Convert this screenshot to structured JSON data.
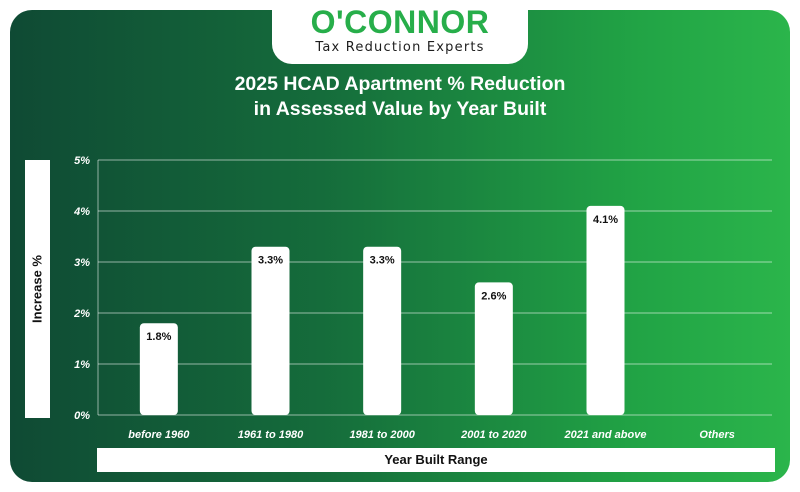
{
  "brand": {
    "name": "O'CONNOR",
    "tagline": "Tax Reduction Experts",
    "color": "#27ae4a"
  },
  "chart_data": {
    "type": "bar",
    "title_lines": [
      "2025 HCAD Apartment % Reduction",
      "in Assessed Value by Year Built"
    ],
    "categories": [
      "before 1960",
      "1961 to 1980",
      "1981 to 2000",
      "2001 to 2020",
      "2021 and above",
      "Others"
    ],
    "values": [
      1.8,
      3.3,
      3.3,
      2.6,
      4.1,
      null
    ],
    "data_labels": [
      "1.8%",
      "3.3%",
      "3.3%",
      "2.6%",
      "4.1%",
      ""
    ],
    "xlabel": "Year Built Range",
    "ylabel": "Increase %",
    "ylim": [
      0,
      5
    ],
    "yticks": [
      0,
      1,
      2,
      3,
      4,
      5
    ],
    "ytick_labels": [
      "0%",
      "1%",
      "2%",
      "3%",
      "4%",
      "5%"
    ],
    "grid": true,
    "bar_color": "#ffffff"
  }
}
